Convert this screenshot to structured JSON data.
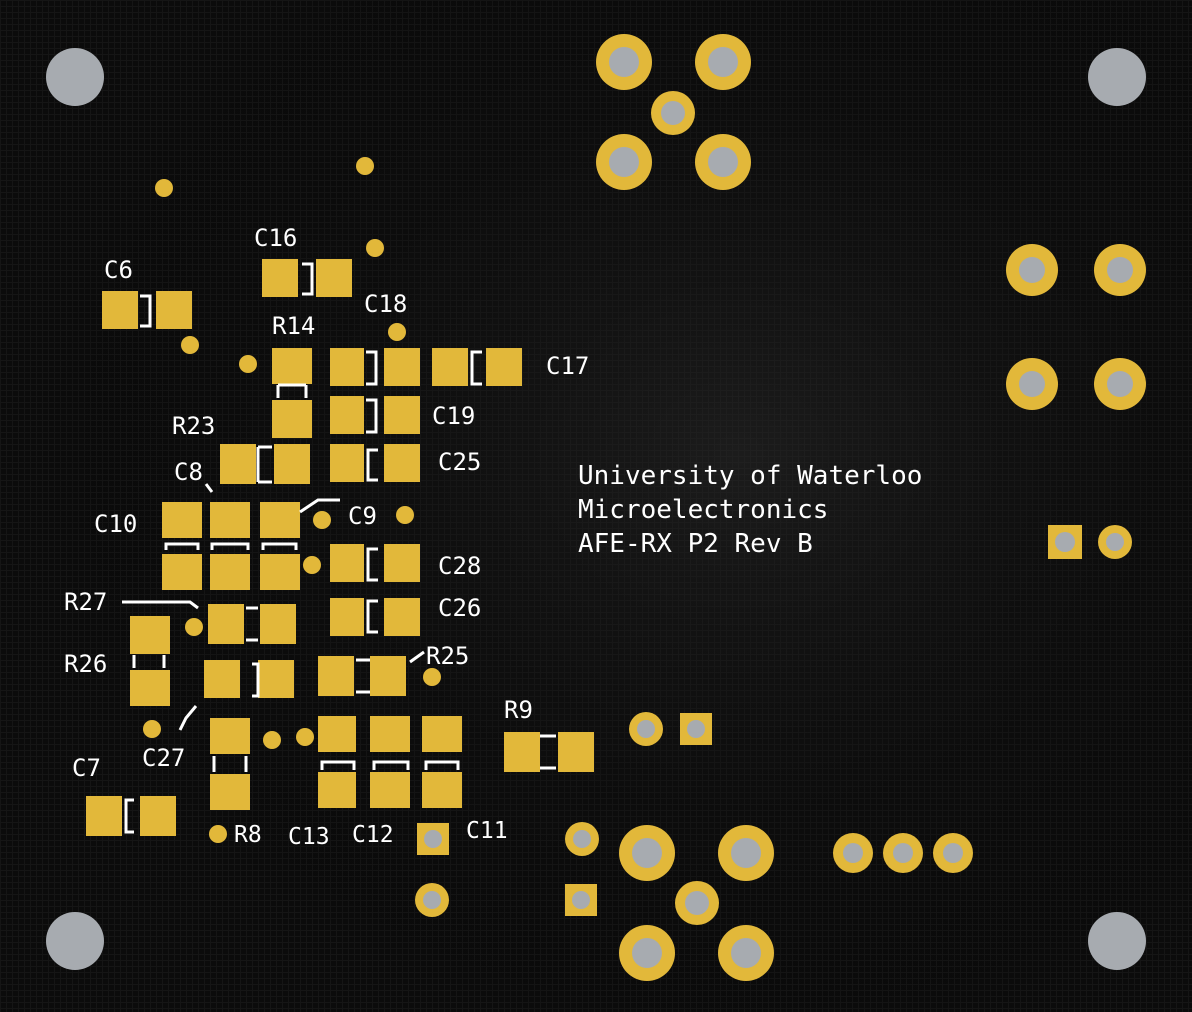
{
  "board": {
    "colors": {
      "background": "#0b0b0b",
      "copper": "#e2b83a",
      "drill": "#a7abb0",
      "silkscreen": "#ffffff"
    },
    "text": {
      "line1": "University of Waterloo",
      "line2": "Microelectronics",
      "line3": "AFE-RX P2 Rev B"
    },
    "labels": {
      "C6": "C6",
      "C16": "C16",
      "C18": "C18",
      "R14": "R14",
      "C17": "C17",
      "C19": "C19",
      "R23": "R23",
      "C25": "C25",
      "C8": "C8",
      "C9": "C9",
      "C10": "C10",
      "C28": "C28",
      "R27": "R27",
      "C26": "C26",
      "R26": "R26",
      "R25": "R25",
      "R9": "R9",
      "C27": "C27",
      "C7": "C7",
      "R8": "R8",
      "C13": "C13",
      "C12": "C12",
      "C11": "C11"
    }
  }
}
